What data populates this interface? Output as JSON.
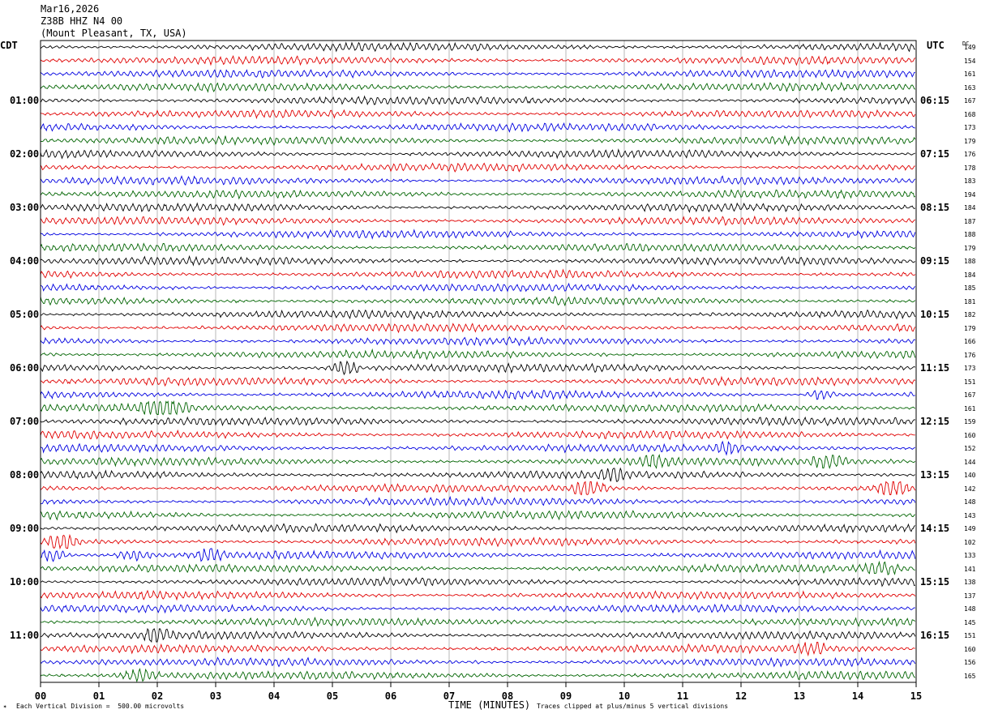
{
  "header": {
    "date": "Mar16,2026",
    "station": "Z38B HHZ N4 00",
    "location": "(Mount Pleasant, TX, USA)"
  },
  "axes": {
    "left_tz": "CDT",
    "right_tz": "UTC",
    "dc_label": "DC",
    "xlabel": "TIME (MINUTES)"
  },
  "footer": {
    "division": "Each Vertical Division =  500.00 microvolts",
    "clip": "Traces clipped at plus/minus 5 vertical divisions"
  },
  "chart_data": {
    "type": "line",
    "subtype": "helicorder",
    "title": "Z38B HHZ N4 00",
    "xlabel": "TIME (MINUTES)",
    "xlim": [
      0,
      15
    ],
    "x_ticks": [
      "00",
      "01",
      "02",
      "03",
      "04",
      "05",
      "06",
      "07",
      "08",
      "09",
      "10",
      "11",
      "12",
      "13",
      "14",
      "15"
    ],
    "trace_minutes": 15,
    "trace_count": 48,
    "trace_colors": [
      "#000000",
      "#e00000",
      "#0000e0",
      "#006400"
    ],
    "left_time_labels": [
      "01:00",
      "02:00",
      "03:00",
      "04:00",
      "05:00",
      "06:00",
      "07:00",
      "08:00",
      "09:00",
      "10:00",
      "11:00"
    ],
    "right_time_labels": [
      "06:15",
      "07:15",
      "08:15",
      "09:15",
      "10:15",
      "11:15",
      "12:15",
      "13:15",
      "14:15",
      "15:15",
      "16:15"
    ],
    "dc_offsets": [
      149,
      154,
      161,
      163,
      167,
      168,
      173,
      179,
      176,
      178,
      183,
      194,
      184,
      187,
      188,
      179,
      188,
      184,
      185,
      181,
      182,
      179,
      166,
      176,
      173,
      151,
      167,
      161,
      159,
      160,
      152,
      144,
      140,
      142,
      148,
      143,
      149,
      102,
      133,
      141,
      138,
      137,
      148,
      145,
      151,
      160,
      156,
      165
    ],
    "events": [
      {
        "trace": 24,
        "minute": 5.2,
        "amp": 2.0,
        "dur": 0.35
      },
      {
        "trace": 27,
        "minute": 2.1,
        "amp": 3.0,
        "dur": 0.5
      },
      {
        "trace": 26,
        "minute": 13.4,
        "amp": 1.6,
        "dur": 0.35
      },
      {
        "trace": 30,
        "minute": 11.8,
        "amp": 1.4,
        "dur": 0.3
      },
      {
        "trace": 31,
        "minute": 10.5,
        "amp": 1.5,
        "dur": 0.4
      },
      {
        "trace": 31,
        "minute": 13.5,
        "amp": 1.6,
        "dur": 0.4
      },
      {
        "trace": 32,
        "minute": 9.8,
        "amp": 2.2,
        "dur": 0.3
      },
      {
        "trace": 33,
        "minute": 9.4,
        "amp": 2.6,
        "dur": 0.35
      },
      {
        "trace": 33,
        "minute": 14.6,
        "amp": 2.4,
        "dur": 0.35
      },
      {
        "trace": 37,
        "minute": 0.4,
        "amp": 2.8,
        "dur": 0.3
      },
      {
        "trace": 38,
        "minute": 0.2,
        "amp": 1.6,
        "dur": 0.4
      },
      {
        "trace": 38,
        "minute": 1.6,
        "amp": 1.2,
        "dur": 0.4
      },
      {
        "trace": 38,
        "minute": 2.9,
        "amp": 2.0,
        "dur": 0.3
      },
      {
        "trace": 39,
        "minute": 14.4,
        "amp": 1.8,
        "dur": 0.35
      },
      {
        "trace": 44,
        "minute": 2.0,
        "amp": 2.2,
        "dur": 0.3
      },
      {
        "trace": 45,
        "minute": 13.2,
        "amp": 1.6,
        "dur": 0.35
      },
      {
        "trace": 47,
        "minute": 1.7,
        "amp": 1.4,
        "dur": 0.4
      }
    ]
  }
}
